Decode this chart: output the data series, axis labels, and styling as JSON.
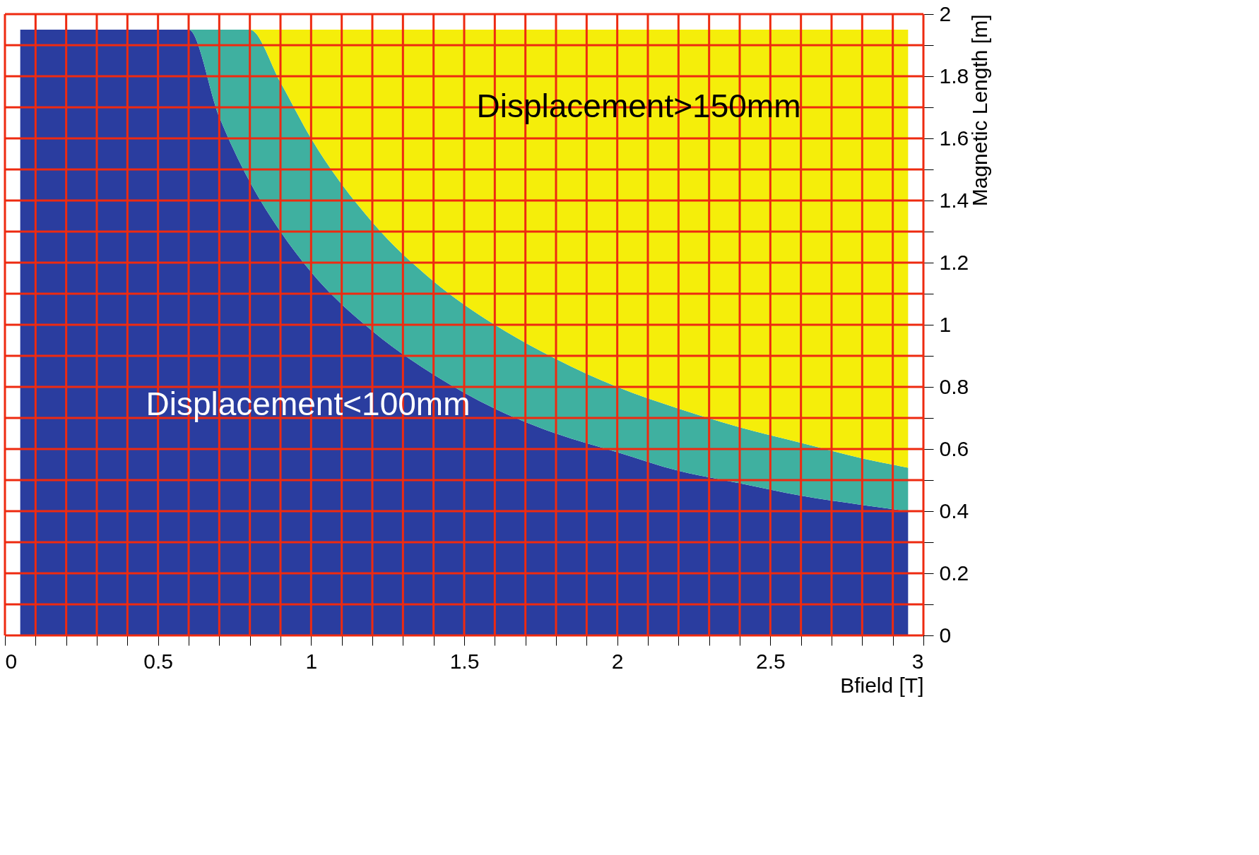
{
  "chart_data": {
    "type": "area",
    "stacked": true,
    "xlabel": "Bfield [T]",
    "ylabel": "Magnetic Length [m]",
    "xlim": [
      0,
      3
    ],
    "ylim": [
      0,
      2
    ],
    "xticks": [
      0,
      {
        "value": 0.1,
        "label": null
      },
      {
        "value": 0.2,
        "label": null
      },
      {
        "value": 0.3,
        "label": null
      },
      {
        "value": 0.4,
        "label": null
      },
      0.5,
      {
        "value": 0.6,
        "label": null
      },
      {
        "value": 0.7,
        "label": null
      },
      {
        "value": 0.8,
        "label": null
      },
      {
        "value": 0.9,
        "label": null
      },
      1,
      {
        "value": 1.1,
        "label": null
      },
      {
        "value": 1.2,
        "label": null
      },
      {
        "value": 1.3,
        "label": null
      },
      {
        "value": 1.4,
        "label": null
      },
      1.5,
      {
        "value": 1.6,
        "label": null
      },
      {
        "value": 1.7,
        "label": null
      },
      {
        "value": 1.8,
        "label": null
      },
      {
        "value": 1.9,
        "label": null
      },
      2,
      {
        "value": 2.1,
        "label": null
      },
      {
        "value": 2.2,
        "label": null
      },
      {
        "value": 2.3,
        "label": null
      },
      {
        "value": 2.4,
        "label": null
      },
      2.5,
      {
        "value": 2.6,
        "label": null
      },
      {
        "value": 2.7,
        "label": null
      },
      {
        "value": 2.8,
        "label": null
      },
      {
        "value": 2.9,
        "label": null
      },
      3
    ],
    "yticks": [
      0,
      {
        "value": 0.1,
        "label": null
      },
      0.2,
      {
        "value": 0.3,
        "label": null
      },
      0.4,
      {
        "value": 0.5,
        "label": null
      },
      0.6,
      {
        "value": 0.7,
        "label": null
      },
      0.8,
      {
        "value": 0.9,
        "label": null
      },
      1,
      {
        "value": 1.1,
        "label": null
      },
      1.2,
      {
        "value": 1.3,
        "label": null
      },
      1.4,
      {
        "value": 1.5,
        "label": null
      },
      1.6,
      {
        "value": 1.7,
        "label": null
      },
      1.8,
      {
        "value": 1.9,
        "label": null
      },
      2
    ],
    "grid": true,
    "legend": false,
    "series": [
      {
        "color": "#2a3d9f",
        "x": [
          0.05,
          0.5,
          0.6,
          0.7,
          0.8,
          0.9,
          1.0,
          1.2,
          1.4,
          1.6,
          1.8,
          2.0,
          2.2,
          2.4,
          2.6,
          2.8,
          2.95
        ],
        "values": [
          1.95,
          1.95,
          1.95,
          1.67,
          1.46,
          1.3,
          1.17,
          0.98,
          0.84,
          0.73,
          0.65,
          0.59,
          0.53,
          0.49,
          0.45,
          0.42,
          0.4
        ]
      },
      {
        "color": "#3fb0a0",
        "x": [
          0.05,
          0.5,
          0.6,
          0.7,
          0.8,
          0.9,
          1.0,
          1.2,
          1.4,
          1.6,
          1.8,
          2.0,
          2.2,
          2.4,
          2.6,
          2.8,
          2.95
        ],
        "values": [
          0,
          0,
          0,
          0.28,
          0.49,
          0.48,
          0.43,
          0.35,
          0.3,
          0.27,
          0.24,
          0.21,
          0.2,
          0.18,
          0.17,
          0.15,
          0.14
        ]
      },
      {
        "color": "#f5ee0a",
        "x": [
          0.05,
          0.5,
          0.6,
          0.7,
          0.8,
          0.9,
          1.0,
          1.2,
          1.4,
          1.6,
          1.8,
          2.0,
          2.2,
          2.4,
          2.6,
          2.8,
          2.95
        ],
        "values": [
          0,
          0,
          0,
          0,
          0,
          0.17,
          0.35,
          0.62,
          0.81,
          0.95,
          1.06,
          1.15,
          1.22,
          1.28,
          1.33,
          1.38,
          1.41
        ]
      }
    ],
    "annotations": [
      "Displacement>150mm",
      "Displacement<100mm"
    ]
  }
}
